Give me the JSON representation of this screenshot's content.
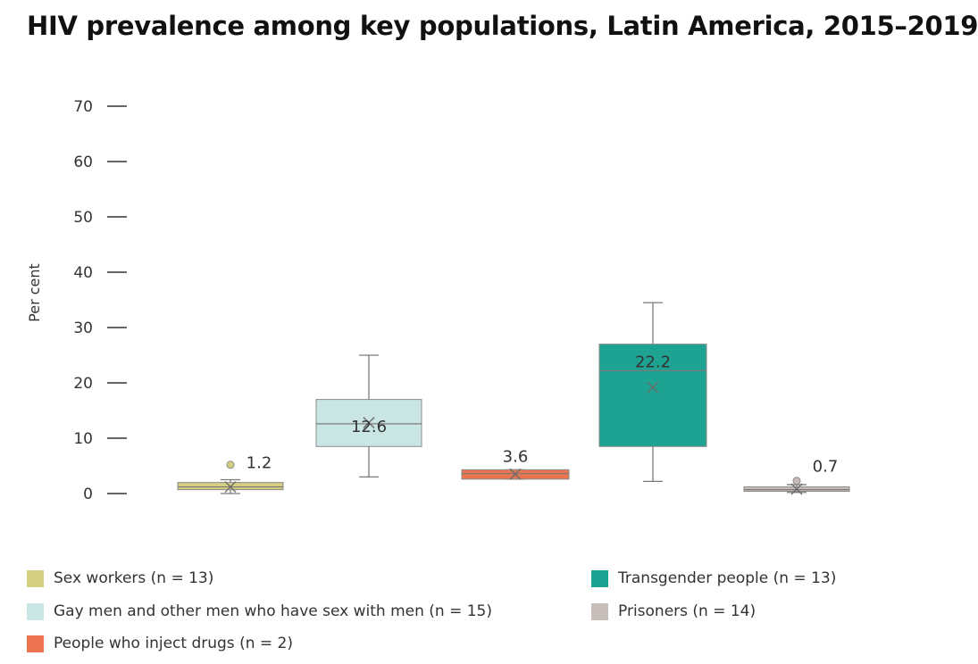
{
  "title": "HIV prevalence among key populations, Latin America, 2015–2019",
  "chart_data": {
    "type": "box",
    "title": "HIV prevalence among key populations, Latin America, 2015–2019",
    "ylabel": "Per cent",
    "ylim": [
      0,
      70
    ],
    "yticks": [
      0,
      10,
      20,
      30,
      40,
      50,
      60,
      70
    ],
    "grid": false,
    "legend_position": "bottom",
    "series": [
      {
        "name": "Sex workers (n = 13)",
        "color": "#d4cf7e",
        "min": 0,
        "q1": 0.7,
        "median": 1.2,
        "q3": 2,
        "max": 2.5,
        "mean": 1.2,
        "outliers": [
          5.2
        ],
        "label": "1.2"
      },
      {
        "name": "Gay men and other men who have sex with men (n = 15)",
        "color": "#c9e6e4",
        "min": 3,
        "q1": 8.5,
        "median": 12.6,
        "q3": 17,
        "max": 25,
        "mean": 12.8,
        "outliers": [],
        "label": "12.6"
      },
      {
        "name": "People who inject drugs (n = 2)",
        "color": "#ec7550",
        "min": 2.6,
        "q1": 2.6,
        "median": 3.6,
        "q3": 4.3,
        "max": 4.3,
        "mean": 3.5,
        "outliers": [],
        "label": "3.6"
      },
      {
        "name": "Transgender people (n = 13)",
        "color": "#1ea392",
        "min": 2.2,
        "q1": 8.5,
        "median": 22.2,
        "q3": 27,
        "max": 34.5,
        "mean": 19.2,
        "outliers": [],
        "label": "22.2"
      },
      {
        "name": "Prisoners (n = 14)",
        "color": "#c7bcb7",
        "min": 0.2,
        "q1": 0.4,
        "median": 0.7,
        "q3": 1.2,
        "max": 1.6,
        "mean": 0.8,
        "outliers": [
          2.3
        ],
        "label": "0.7"
      }
    ]
  }
}
